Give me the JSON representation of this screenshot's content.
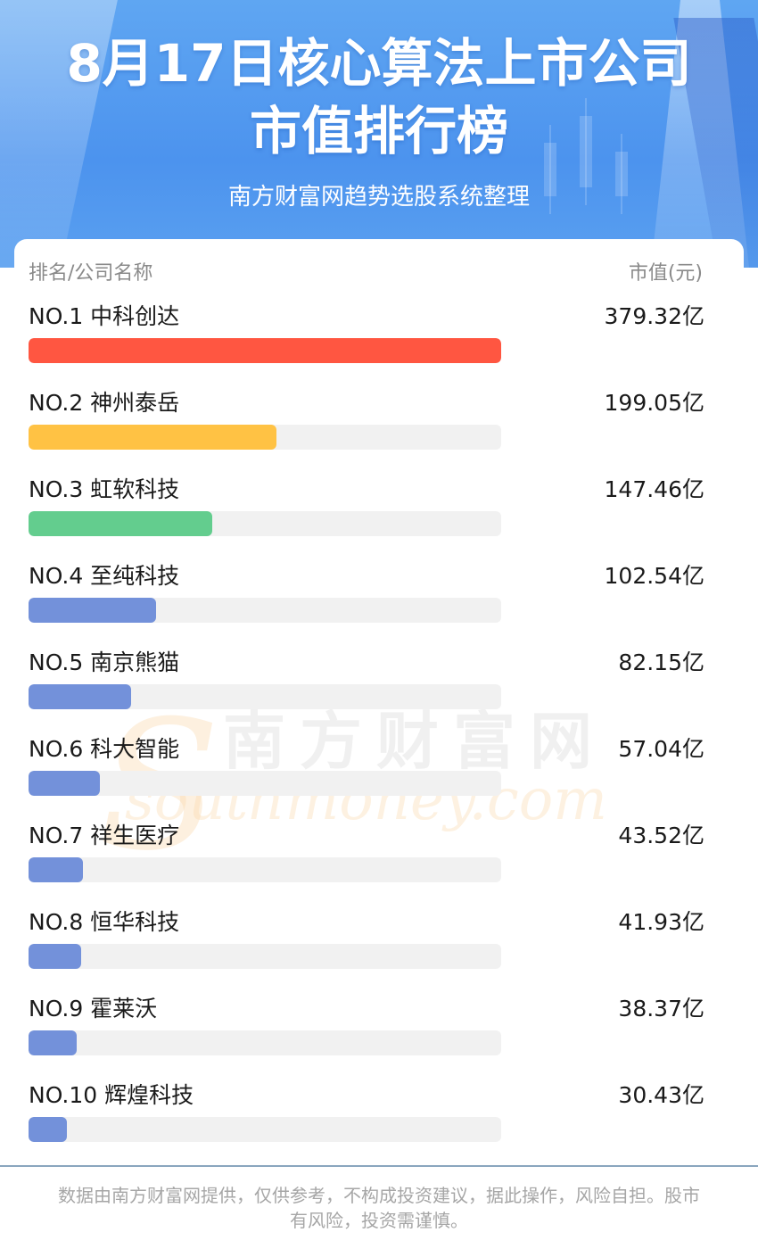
{
  "header": {
    "title_line1": "8月17日核心算法上市公司",
    "title_line2": "市值排行榜",
    "subtitle": "南方财富网趋势选股系统整理"
  },
  "table": {
    "col_left": "排名/公司名称",
    "col_right": "市值(元)"
  },
  "chart_data": {
    "type": "bar",
    "orientation": "horizontal",
    "title": "8月17日核心算法上市公司市值排行榜",
    "unit": "亿",
    "rank_labels": [
      "NO.1",
      "NO.2",
      "NO.3",
      "NO.4",
      "NO.5",
      "NO.6",
      "NO.7",
      "NO.8",
      "NO.9",
      "NO.10"
    ],
    "categories": [
      "中科创达",
      "神州泰岳",
      "虹软科技",
      "至纯科技",
      "南京熊猫",
      "科大智能",
      "祥生医疗",
      "恒华科技",
      "霍莱沃",
      "辉煌科技"
    ],
    "values": [
      379.32,
      199.05,
      147.46,
      102.54,
      82.15,
      57.04,
      43.52,
      41.93,
      38.37,
      30.43
    ],
    "value_labels": [
      "379.32亿",
      "199.05亿",
      "147.46亿",
      "102.54亿",
      "82.15亿",
      "57.04亿",
      "43.52亿",
      "41.93亿",
      "38.37亿",
      "30.43亿"
    ],
    "colors": [
      "#ff5641",
      "#ffc244",
      "#63cd8e",
      "#7391da",
      "#7391da",
      "#7391da",
      "#7391da",
      "#7391da",
      "#7391da",
      "#7391da"
    ],
    "xlim": [
      0,
      379.32
    ]
  },
  "watermark": {
    "cn": "南方财富网",
    "en": "southmoney.com"
  },
  "footer": {
    "text": "数据由南方财富网提供，仅供参考，不构成投资建议，据此操作，风险自担。股市有风险，投资需谨慎。"
  }
}
